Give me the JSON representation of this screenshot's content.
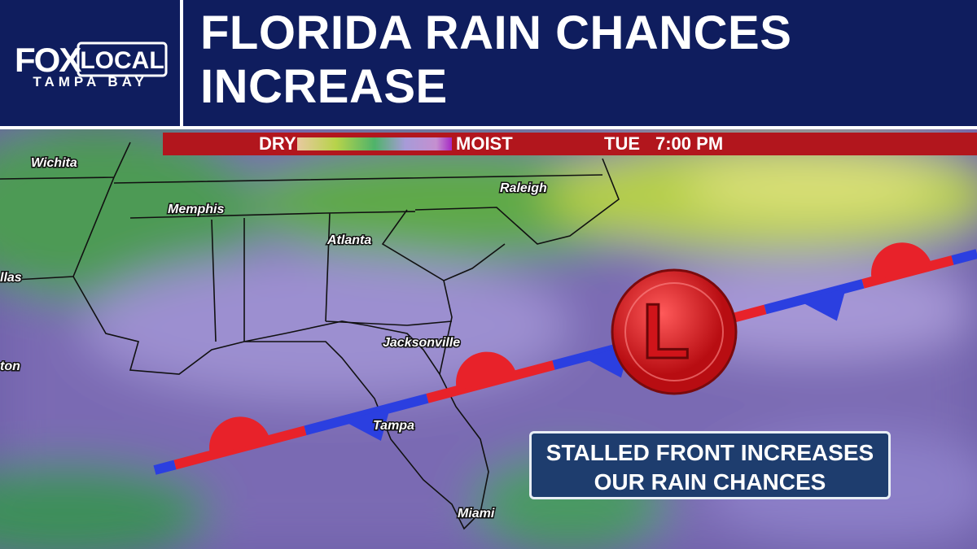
{
  "logo": {
    "brand": "FOX",
    "product": "LOCAL",
    "market": "TAMPA BAY"
  },
  "headline": "FLORIDA RAIN CHANCES INCREASE",
  "legend_bar": {
    "dry": "DRY",
    "moist": "MOIST",
    "day": "TUE",
    "time": "7:00 PM"
  },
  "cities": [
    "Wichita",
    "Memphis",
    "Raleigh",
    "Atlanta",
    "llas",
    "Jacksonville",
    "ton",
    "Tampa",
    "Miami"
  ],
  "low_pressure": "L",
  "lower_third": "STALLED FRONT INCREASES OUR RAIN CHANCES"
}
